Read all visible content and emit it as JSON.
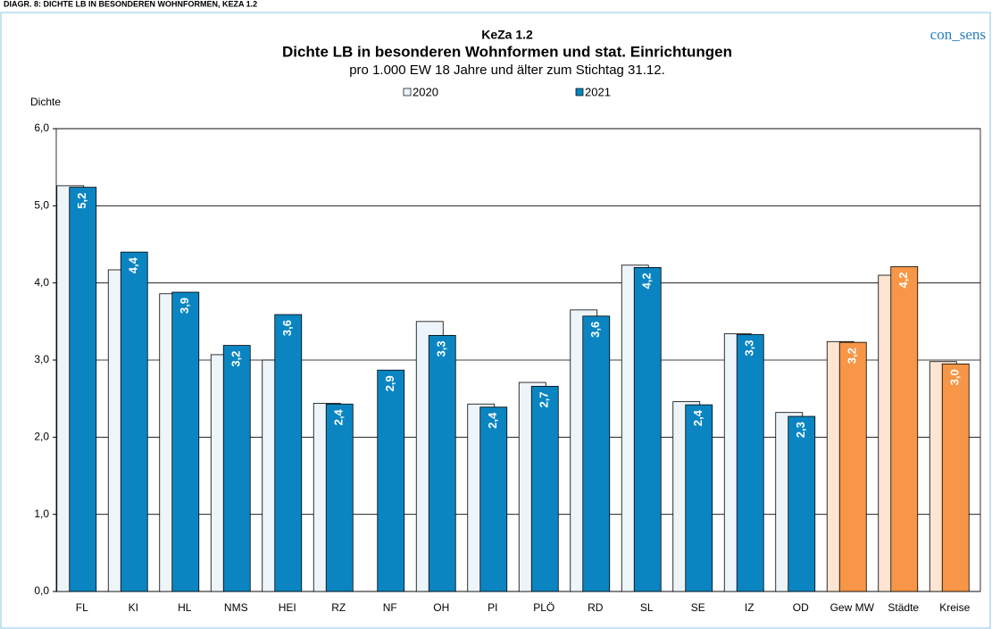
{
  "chart_data": {
    "type": "bar",
    "header": "DIAGR. 8: DICHTE LB IN BESONDEREN WOHNFORMEN, KEZA 1.2",
    "title": "KeZa 1.2",
    "subtitle": "Dichte LB in besonderen Wohnformen und stat. Einrichtungen",
    "note": "pro 1.000 EW 18 Jahre und älter zum Stichtag 31.12.",
    "brand": "con_sens",
    "y_label": "Dichte",
    "categories": [
      "FL",
      "KI",
      "HL",
      "NMS",
      "HEI",
      "RZ",
      "NF",
      "OH",
      "PI",
      "PLÖ",
      "RD",
      "SL",
      "SE",
      "IZ",
      "OD",
      "Gew MW",
      "Städte",
      "Kreise"
    ],
    "series": [
      {
        "name": "2020",
        "color": "#eef5fa",
        "colors": [
          "#eef5fa",
          "#eef5fa",
          "#eef5fa",
          "#eef5fa",
          "#eef5fa",
          "#eef5fa",
          "#eef5fa",
          "#eef5fa",
          "#eef5fa",
          "#eef5fa",
          "#eef5fa",
          "#eef5fa",
          "#eef5fa",
          "#eef5fa",
          "#eef5fa",
          "#fde5d2",
          "#fde5d2",
          "#fde5d2"
        ],
        "values": [
          5.26,
          4.17,
          3.86,
          3.07,
          3.0,
          2.44,
          null,
          3.5,
          2.43,
          2.71,
          3.65,
          4.23,
          2.46,
          3.34,
          2.32,
          3.24,
          4.1,
          2.98
        ]
      },
      {
        "name": "2021",
        "color": "#0a85c2",
        "colors": [
          "#0a85c2",
          "#0a85c2",
          "#0a85c2",
          "#0a85c2",
          "#0a85c2",
          "#0a85c2",
          "#0a85c2",
          "#0a85c2",
          "#0a85c2",
          "#0a85c2",
          "#0a85c2",
          "#0a85c2",
          "#0a85c2",
          "#0a85c2",
          "#0a85c2",
          "#f79646",
          "#f79646",
          "#f79646"
        ],
        "values": [
          5.24,
          4.4,
          3.88,
          3.19,
          3.59,
          2.43,
          2.87,
          3.32,
          2.39,
          2.66,
          3.57,
          4.2,
          2.42,
          3.33,
          2.27,
          3.23,
          4.21,
          2.95
        ],
        "value_labels": [
          "5,2",
          "4,4",
          "3,9",
          "3,2",
          "3,6",
          "2,4",
          "2,9",
          "3,3",
          "2,4",
          "2,7",
          "3,6",
          "4,2",
          "2,4",
          "3,3",
          "2,3",
          "3,2",
          "4,2",
          "3,0"
        ]
      }
    ],
    "ylim": [
      0,
      6
    ],
    "yticks": [
      {
        "value": 0,
        "label": "0,0"
      },
      {
        "value": 1,
        "label": "1,0"
      },
      {
        "value": 2,
        "label": "2,0"
      },
      {
        "value": 3,
        "label": "3,0"
      },
      {
        "value": 4,
        "label": "4,0"
      },
      {
        "value": 5,
        "label": "5,0"
      },
      {
        "value": 6,
        "label": "6,0"
      }
    ],
    "grid": true
  }
}
